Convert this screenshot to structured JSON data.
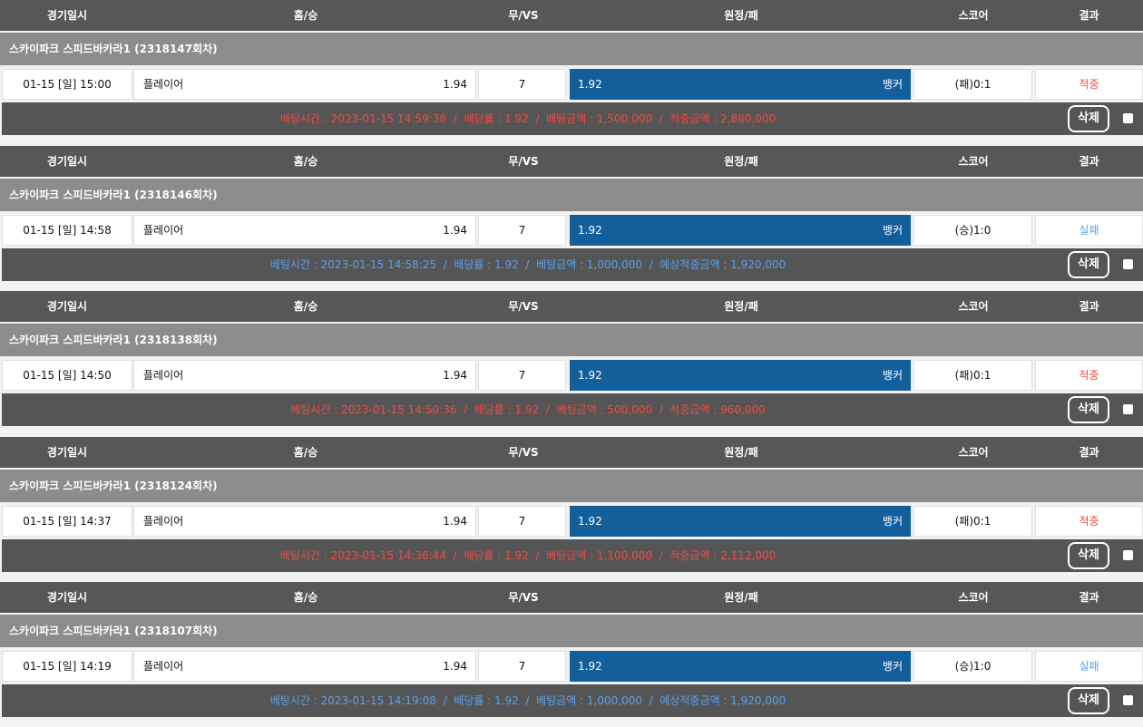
{
  "headers": {
    "date": "경기일시",
    "home": "홈/승",
    "vs": "무/VS",
    "away": "원정/패",
    "score": "스코어",
    "result": "결과"
  },
  "delete_label": "삭제",
  "colors": {
    "away_bg": "#135f9c",
    "win": "#f04a44",
    "lose": "#5aa0ea"
  },
  "bets": [
    {
      "group": "스카이파크 스피드바카라1 (2318147회차)",
      "date": "01-15 [일] 15:00",
      "home": "플레이어",
      "home_odds": "1.94",
      "vs": "7",
      "away_odds": "1.92",
      "away": "뱅커",
      "score": "(패)0:1",
      "result": "적중",
      "status": "win",
      "info": "베팅시간 : 2023-01-15 14:59:38  /  배당률 : 1.92  /  베팅금액 : 1,500,000  /  적중금액 : 2,880,000"
    },
    {
      "group": "스카이파크 스피드바카라1 (2318146회차)",
      "date": "01-15 [일] 14:58",
      "home": "플레이어",
      "home_odds": "1.94",
      "vs": "7",
      "away_odds": "1.92",
      "away": "뱅커",
      "score": "(승)1:0",
      "result": "실패",
      "status": "lose",
      "info": "베팅시간 : 2023-01-15 14:58:25  /  배당률 : 1.92  /  베팅금액 : 1,000,000  /  예상적중금액 : 1,920,000"
    },
    {
      "group": "스카이파크 스피드바카라1 (2318138회차)",
      "date": "01-15 [일] 14:50",
      "home": "플레이어",
      "home_odds": "1.94",
      "vs": "7",
      "away_odds": "1.92",
      "away": "뱅커",
      "score": "(패)0:1",
      "result": "적중",
      "status": "win",
      "info": "베팅시간 : 2023-01-15 14:50:36  /  배당률 : 1.92  /  베팅금액 : 500,000  /  적중금액 : 960,000"
    },
    {
      "group": "스카이파크 스피드바카라1 (2318124회차)",
      "date": "01-15 [일] 14:37",
      "home": "플레이어",
      "home_odds": "1.94",
      "vs": "7",
      "away_odds": "1.92",
      "away": "뱅커",
      "score": "(패)0:1",
      "result": "적중",
      "status": "win",
      "info": "베팅시간 : 2023-01-15 14:36:44  /  배당률 : 1.92  /  베팅금액 : 1,100,000  /  적중금액 : 2,112,000"
    },
    {
      "group": "스카이파크 스피드바카라1 (2318107회차)",
      "date": "01-15 [일] 14:19",
      "home": "플레이어",
      "home_odds": "1.94",
      "vs": "7",
      "away_odds": "1.92",
      "away": "뱅커",
      "score": "(승)1:0",
      "result": "실패",
      "status": "lose",
      "info": "베팅시간 : 2023-01-15 14:19:08  /  배당률 : 1.92  /  베팅금액 : 1,000,000  /  예상적중금액 : 1,920,000"
    }
  ]
}
